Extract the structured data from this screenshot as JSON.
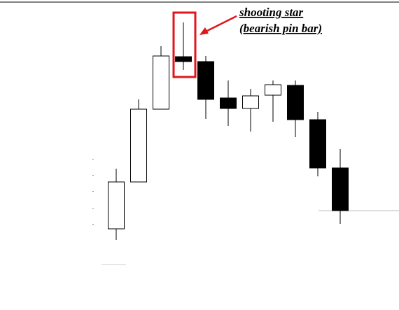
{
  "chart_data": {
    "type": "candlestick",
    "annotation": [
      "shooting star",
      "(bearish pin bar)"
    ],
    "open": [
      116,
      183,
      287,
      362,
      355,
      303,
      288,
      307,
      321,
      272,
      203
    ],
    "high": [
      202,
      301,
      377,
      411,
      363,
      328,
      316,
      328,
      328,
      283,
      230
    ],
    "low": [
      100,
      183,
      287,
      343,
      273,
      263,
      255,
      269,
      247,
      191,
      123
    ],
    "close": [
      183,
      287,
      363,
      355,
      301,
      288,
      306,
      322,
      272,
      203,
      142
    ],
    "ylim": [
      0,
      443
    ],
    "up_color": "#ffffff",
    "down_color": "#000000",
    "highlight_color": "#e0161c"
  }
}
